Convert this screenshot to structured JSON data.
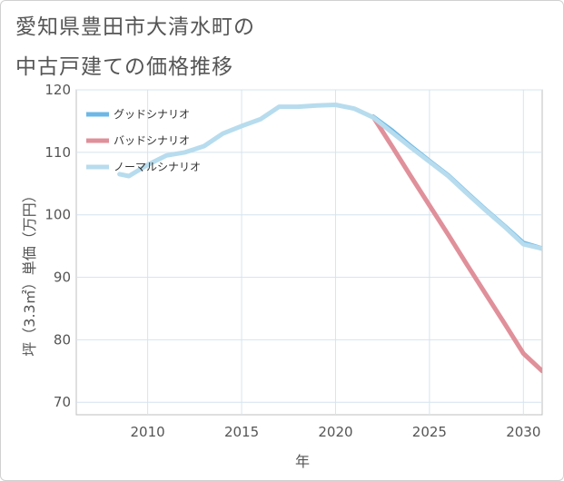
{
  "title_lines": [
    "愛知県豊田市大清水町の",
    "中古戸建ての価格推移"
  ],
  "chart_data": {
    "type": "line",
    "title": "愛知県豊田市大清水町の中古戸建ての価格推移",
    "xlabel": "年",
    "ylabel": "坪（3.3㎡）単価（万円）",
    "xlim": [
      2006.2,
      2031
    ],
    "ylim": [
      68,
      120
    ],
    "x_ticks": [
      2010,
      2015,
      2020,
      2025,
      2030
    ],
    "y_ticks": [
      70,
      80,
      90,
      100,
      110,
      120
    ],
    "grid": true,
    "legend_position": "top-left",
    "series": [
      {
        "name": "グッドシナリオ",
        "color": "#6db8e6",
        "x": [
          2022,
          2023,
          2024,
          2025,
          2026,
          2027,
          2028,
          2029,
          2030,
          2031
        ],
        "y": [
          115.7,
          113.5,
          111.0,
          108.6,
          106.3,
          103.5,
          100.8,
          98.2,
          95.5,
          94.6
        ]
      },
      {
        "name": "バッドシナリオ",
        "color": "#e0909a",
        "x": [
          2022,
          2023,
          2024,
          2025,
          2026,
          2027,
          2028,
          2029,
          2030,
          2031
        ],
        "y": [
          115.7,
          111.0,
          106.2,
          101.5,
          96.8,
          92.0,
          87.3,
          82.6,
          77.8,
          75.0
        ]
      },
      {
        "name": "ノーマルシナリオ",
        "color": "#b7dcee",
        "x": [
          2008.5,
          2009,
          2010,
          2011,
          2012,
          2013,
          2014,
          2015,
          2016,
          2017,
          2018,
          2019,
          2020,
          2021,
          2022,
          2023,
          2024,
          2025,
          2026,
          2027,
          2028,
          2029,
          2030,
          2031
        ],
        "y": [
          106.5,
          106.2,
          108.0,
          109.5,
          110.0,
          111.0,
          113.0,
          114.2,
          115.3,
          117.3,
          117.3,
          117.5,
          117.6,
          117.0,
          115.6,
          113.2,
          110.8,
          108.5,
          106.2,
          103.4,
          100.7,
          98.1,
          95.3,
          94.6
        ]
      }
    ]
  }
}
